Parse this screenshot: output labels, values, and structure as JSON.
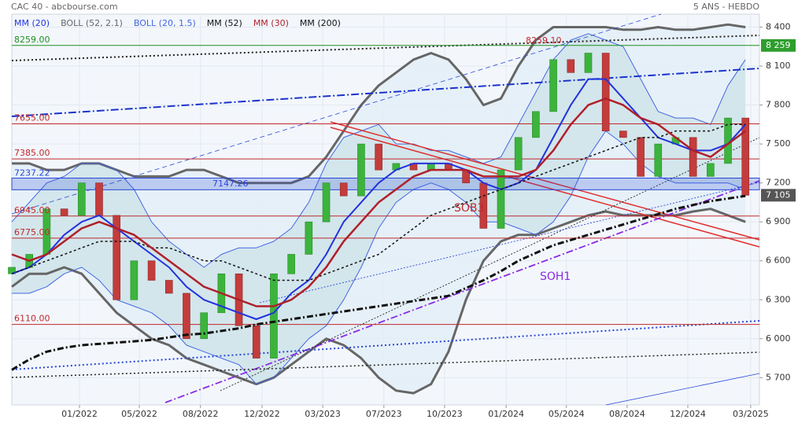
{
  "chart_data": {
    "type": "candlestick",
    "title": "CAC 40 - abcbourse.com",
    "subtitle": "5 ANS - HEBDO",
    "x": [
      0,
      4,
      8,
      12,
      16,
      20,
      24,
      28,
      32,
      36,
      40,
      44,
      48,
      52,
      56,
      60,
      64,
      68,
      72,
      76,
      80,
      84,
      88,
      92,
      96,
      100,
      104,
      108,
      112,
      116,
      120,
      124,
      128,
      132,
      136,
      140,
      144,
      148,
      152,
      156,
      160,
      164,
      168
    ],
    "xlim": [
      0,
      171.2
    ],
    "xticks": [
      {
        "value": 15.5,
        "label": "01/2022"
      },
      {
        "value": 29.2,
        "label": "05/2022"
      },
      {
        "value": 43.2,
        "label": "08/2022"
      },
      {
        "value": 57.3,
        "label": "12/2022"
      },
      {
        "value": 71.2,
        "label": "03/2023"
      },
      {
        "value": 85.2,
        "label": "07/2023"
      },
      {
        "value": 99.1,
        "label": "10/2023"
      },
      {
        "value": 113.2,
        "label": "01/2024"
      },
      {
        "value": 127,
        "label": "05/2024"
      },
      {
        "value": 140.9,
        "label": "08/2024"
      },
      {
        "value": 154.8,
        "label": "12/2024"
      },
      {
        "value": 169.2,
        "label": "03/2025"
      }
    ],
    "ylim": [
      5490,
      8500
    ],
    "yticks": [
      {
        "value": 5700,
        "label": "5 700"
      },
      {
        "value": 6000,
        "label": "6 000"
      },
      {
        "value": 6300,
        "label": "6 300"
      },
      {
        "value": 6600,
        "label": "6 600"
      },
      {
        "value": 6900,
        "label": "6 900"
      },
      {
        "value": 7200,
        "label": "7 200"
      },
      {
        "value": 7500,
        "label": "7 500"
      },
      {
        "value": 7800,
        "label": "7 800"
      },
      {
        "value": 8100,
        "label": "8 100"
      },
      {
        "value": 8400,
        "label": "8 400"
      }
    ],
    "grid": true,
    "candles": {
      "up_color": "#3cb43c",
      "down_color": "#c43c3c",
      "open": [
        6500,
        6550,
        6650,
        7000,
        6950,
        7200,
        6950,
        6300,
        6600,
        6450,
        6350,
        6000,
        6200,
        6500,
        6100,
        5850,
        6500,
        6650,
        6900,
        7200,
        7100,
        7500,
        7300,
        7350,
        7300,
        7350,
        7300,
        7200,
        6850,
        7300,
        7550,
        7750,
        8150,
        8050,
        8200,
        7600,
        7550,
        7250,
        7500,
        7550,
        7250,
        7350,
        7700
      ],
      "close": [
        6550,
        6650,
        7000,
        6950,
        7200,
        6950,
        6300,
        6600,
        6450,
        6350,
        6000,
        6200,
        6500,
        6100,
        5850,
        6500,
        6650,
        6900,
        7200,
        7100,
        7500,
        7300,
        7350,
        7300,
        7350,
        7300,
        7200,
        6850,
        7300,
        7550,
        7750,
        8150,
        8050,
        8200,
        7600,
        7550,
        7250,
        7500,
        7550,
        7250,
        7350,
        7700,
        7105
      ]
    },
    "series": [
      {
        "name": "MM (20)",
        "color": "#2233dd",
        "width": 2,
        "values": [
          6500,
          6550,
          6650,
          6800,
          6900,
          6950,
          6850,
          6750,
          6650,
          6550,
          6400,
          6300,
          6250,
          6200,
          6150,
          6200,
          6350,
          6450,
          6650,
          6900,
          7050,
          7200,
          7300,
          7350,
          7350,
          7350,
          7300,
          7200,
          7150,
          7200,
          7300,
          7550,
          7800,
          8000,
          8000,
          7850,
          7700,
          7550,
          7500,
          7450,
          7450,
          7500,
          7650
        ]
      },
      {
        "name": "BOLL (52, 2.1)",
        "color": "#666666",
        "width": 3,
        "fill": "#e3eef7",
        "upper": [
          7350,
          7350,
          7300,
          7300,
          7350,
          7350,
          7300,
          7250,
          7250,
          7250,
          7300,
          7300,
          7250,
          7200,
          7200,
          7200,
          7200,
          7250,
          7400,
          7600,
          7800,
          7950,
          8050,
          8150,
          8200,
          8150,
          8000,
          7800,
          7850,
          8100,
          8300,
          8400,
          8400,
          8400,
          8400,
          8380,
          8380,
          8400,
          8380,
          8380,
          8400,
          8420,
          8400
        ],
        "lower": [
          6400,
          6500,
          6500,
          6550,
          6500,
          6350,
          6200,
          6100,
          6000,
          5950,
          5850,
          5800,
          5750,
          5700,
          5650,
          5700,
          5800,
          5900,
          6000,
          5950,
          5850,
          5700,
          5600,
          5580,
          5650,
          5900,
          6300,
          6600,
          6750,
          6800,
          6800,
          6850,
          6900,
          6950,
          6980,
          6950,
          6950,
          6950,
          6950,
          6980,
          7000,
          6950,
          6900
        ]
      },
      {
        "name": "BOLL (20, 1.5)",
        "color": "#4466e0",
        "width": 1,
        "fill": "#cfe4ea",
        "upper": [
          6900,
          7050,
          7200,
          7250,
          7350,
          7350,
          7300,
          7150,
          6900,
          6750,
          6650,
          6550,
          6650,
          6700,
          6700,
          6750,
          6850,
          7050,
          7350,
          7550,
          7600,
          7650,
          7500,
          7500,
          7450,
          7450,
          7400,
          7350,
          7400,
          7650,
          7900,
          8150,
          8300,
          8350,
          8300,
          8250,
          8000,
          7750,
          7700,
          7700,
          7650,
          7950,
          8150
        ],
        "lower": [
          6350,
          6350,
          6400,
          6500,
          6550,
          6450,
          6300,
          6250,
          6200,
          6100,
          5950,
          5900,
          5850,
          5800,
          5650,
          5700,
          5850,
          6000,
          6100,
          6300,
          6550,
          6850,
          7050,
          7150,
          7200,
          7150,
          7050,
          6900,
          6900,
          6850,
          6800,
          6900,
          7100,
          7400,
          7600,
          7500,
          7350,
          7250,
          7200,
          7200,
          7200,
          7200,
          7150
        ]
      },
      {
        "name": "MM (52)",
        "color": "#111111",
        "width": 1.5,
        "dash": "3 3",
        "values": [
          6500,
          6550,
          6600,
          6650,
          6700,
          6750,
          6750,
          6750,
          6700,
          6700,
          6650,
          6600,
          6600,
          6550,
          6500,
          6450,
          6450,
          6450,
          6500,
          6550,
          6600,
          6650,
          6750,
          6850,
          6950,
          7000,
          7050,
          7100,
          7150,
          7200,
          7250,
          7300,
          7350,
          7400,
          7450,
          7500,
          7550,
          7550,
          7600,
          7600,
          7600,
          7650,
          7650
        ]
      },
      {
        "name": "MM (30)",
        "color": "#b0202a",
        "width": 2.5,
        "values": [
          6650,
          6600,
          6650,
          6750,
          6850,
          6900,
          6850,
          6800,
          6700,
          6600,
          6500,
          6400,
          6350,
          6300,
          6250,
          6250,
          6300,
          6400,
          6550,
          6750,
          6900,
          7050,
          7150,
          7250,
          7300,
          7300,
          7300,
          7250,
          7250,
          7250,
          7300,
          7450,
          7650,
          7800,
          7850,
          7800,
          7700,
          7650,
          7550,
          7450,
          7400,
          7500,
          7600
        ]
      },
      {
        "name": "MM (200)",
        "color": "#111111",
        "width": 3,
        "dash": "8 3 2 3",
        "values": [
          5760,
          5840,
          5900,
          5930,
          5950,
          5960,
          5970,
          5980,
          5990,
          6010,
          6030,
          6040,
          6060,
          6080,
          6110,
          6130,
          6150,
          6170,
          6190,
          6210,
          6230,
          6250,
          6270,
          6290,
          6310,
          6330,
          6390,
          6450,
          6520,
          6600,
          6660,
          6720,
          6760,
          6800,
          6840,
          6880,
          6920,
          6960,
          7000,
          7030,
          7060,
          7080,
          7100
        ]
      }
    ],
    "levels": [
      {
        "value": 8259,
        "label": "8259.00",
        "color": "#1f8f1f"
      },
      {
        "value": 7655,
        "label": "7655.00",
        "color": "#c0282c"
      },
      {
        "value": 7385,
        "label": "7385.00",
        "color": "#c0282c"
      },
      {
        "value": 6945,
        "label": "6945.00",
        "color": "#c0282c"
      },
      {
        "value": 6775,
        "label": "6775.00",
        "color": "#c0282c"
      },
      {
        "value": 6110,
        "label": "6110.00",
        "color": "#c0282c"
      }
    ],
    "zone": {
      "from": {
        "value": 7147.26,
        "label": "7147.26"
      },
      "to": {
        "value": 7237.22,
        "label": "7237.22"
      },
      "color": "#2a47d6"
    },
    "peak": {
      "value": 8259.1,
      "label": "8259.10"
    },
    "annotations": [
      {
        "text": "SOB3",
        "color": "#c0282c"
      },
      {
        "text": "SOH1",
        "color": "#8a2be2"
      }
    ],
    "price_tags": [
      {
        "value": 8259,
        "label": "8 259",
        "color": "#2e9e2e"
      },
      {
        "value": 7105,
        "label": "7 105",
        "color": "#555555"
      }
    ]
  }
}
